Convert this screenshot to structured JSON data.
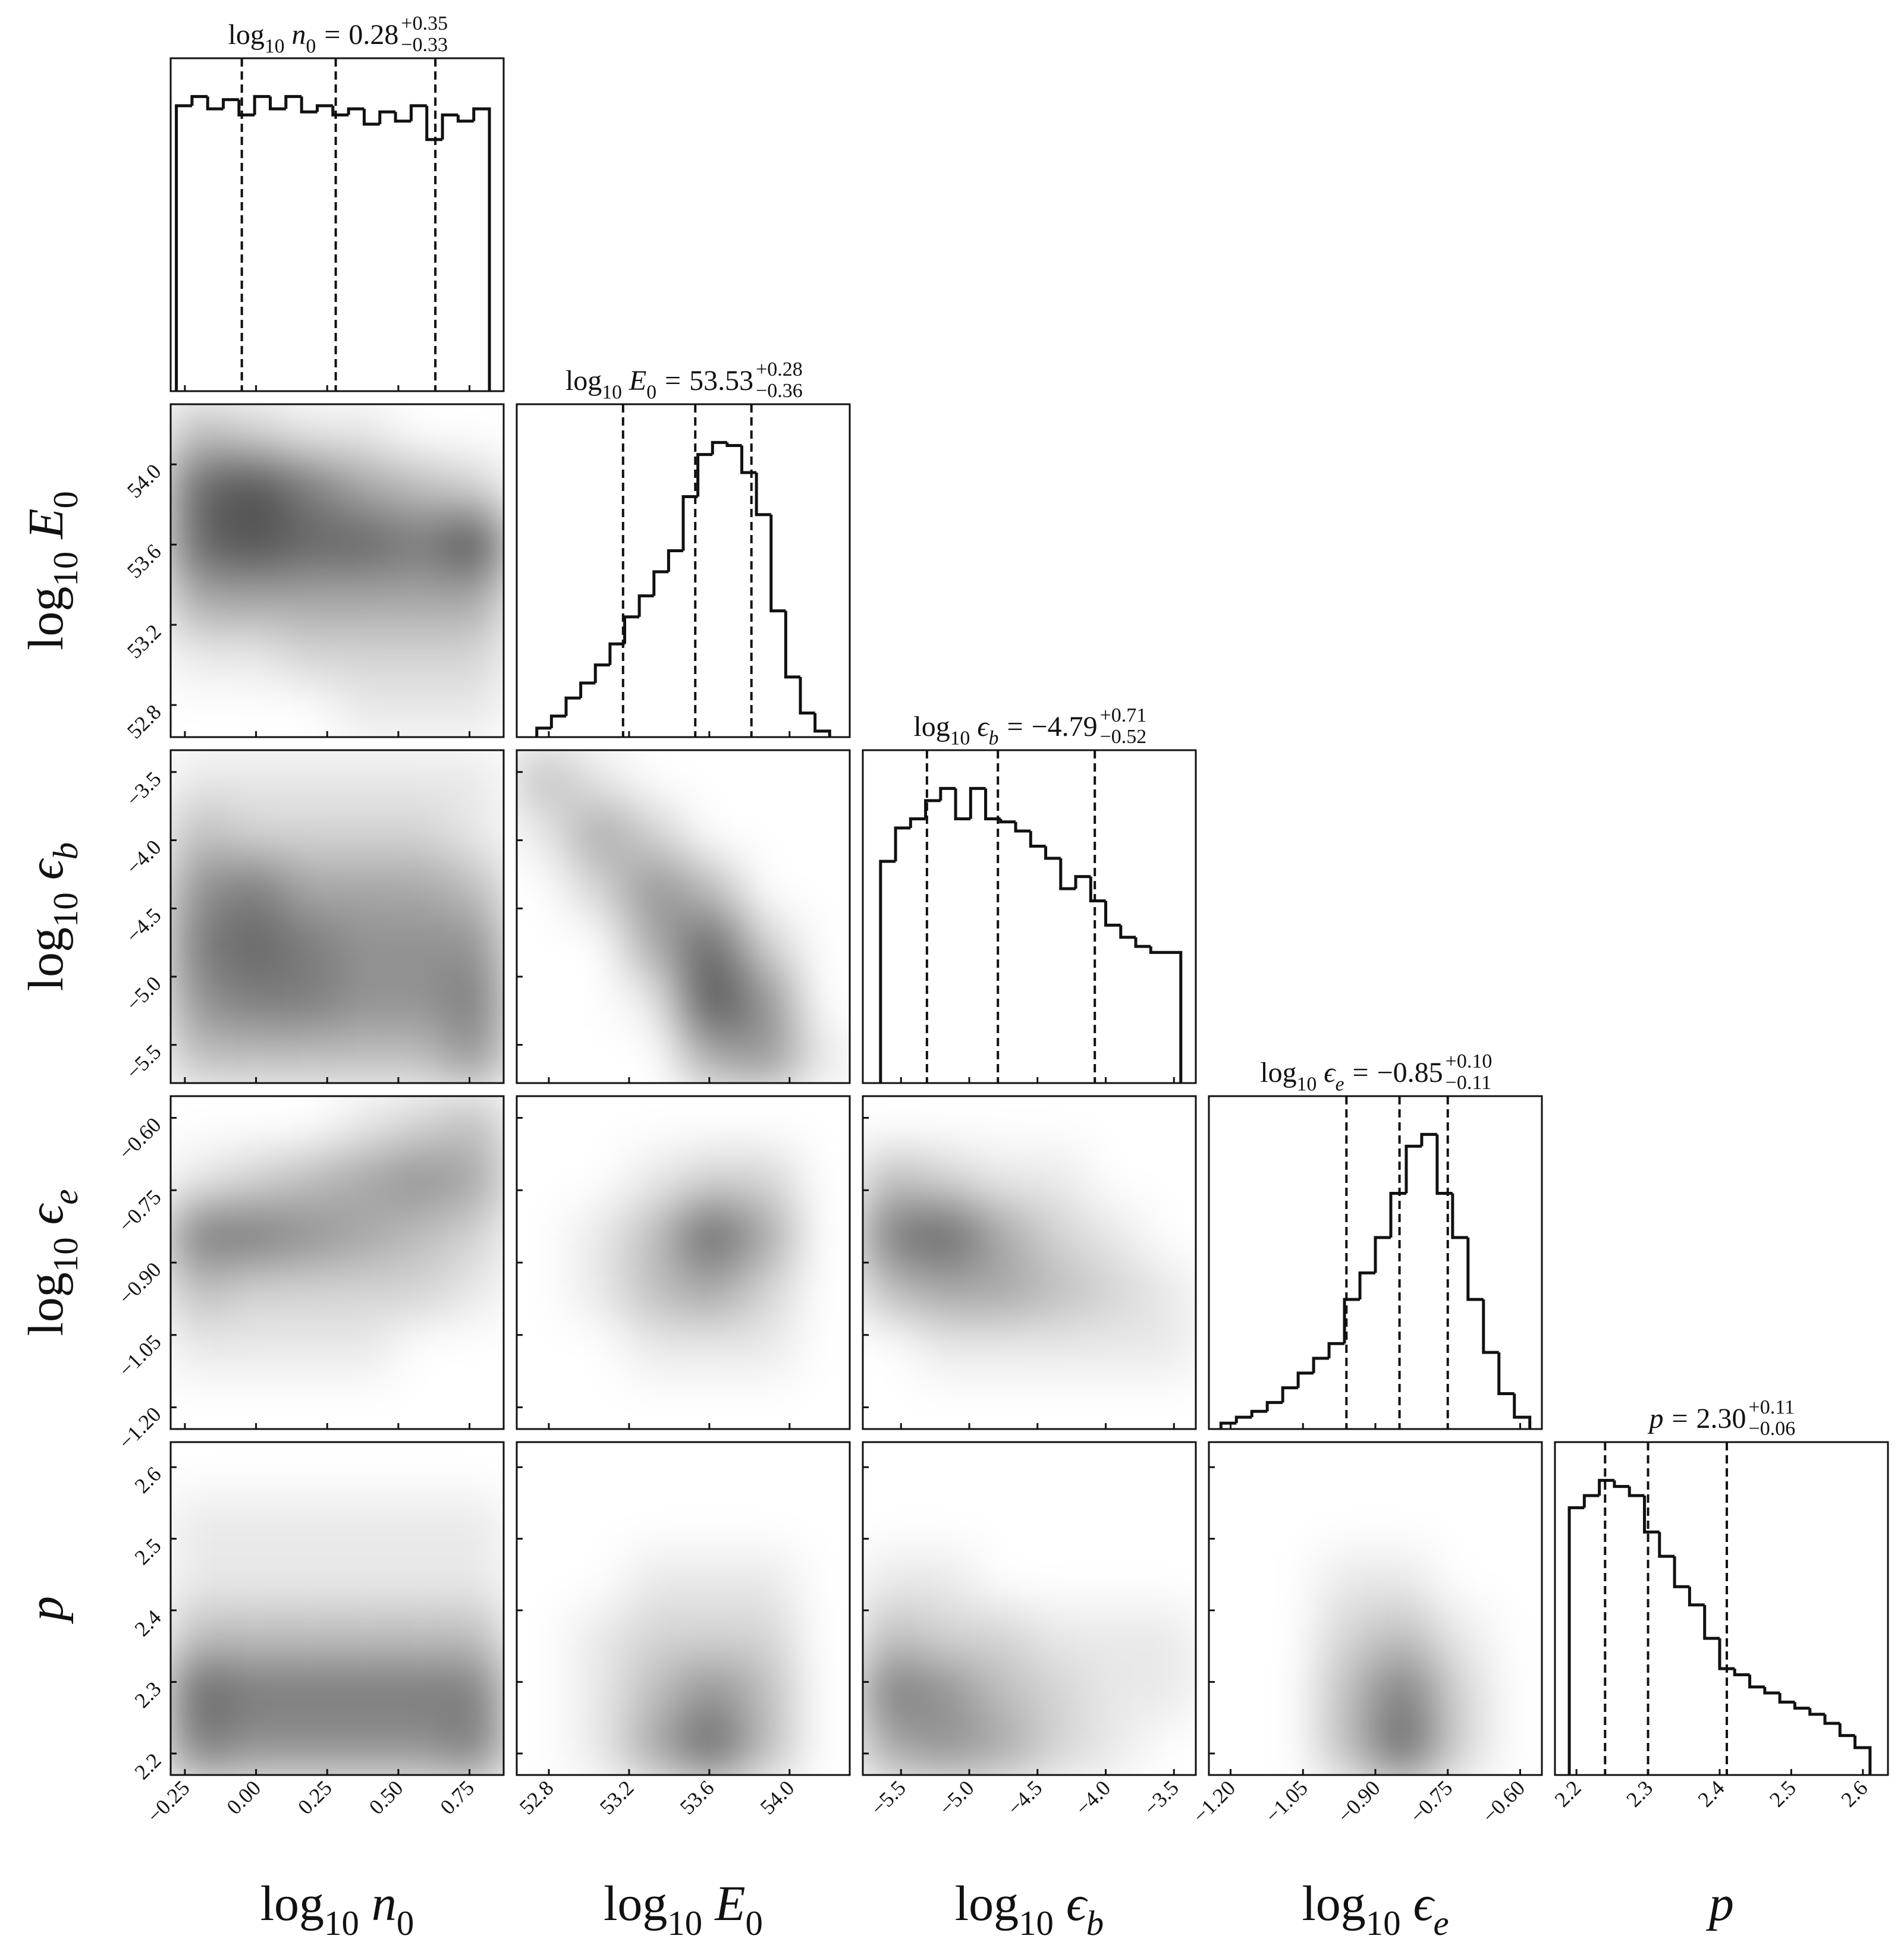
{
  "chart_data": {
    "type": "corner",
    "title_sep": "=",
    "params": [
      {
        "label": {
          "fn": "log",
          "base": "10",
          "sym": "n",
          "sub": "0"
        },
        "lim": [
          -0.3,
          0.87
        ],
        "ticks": [
          {
            "value": -0.25,
            "label": "−0.25"
          },
          {
            "value": 0,
            "label": "0.00"
          },
          0.25,
          {
            "value": 0.5,
            "label": "0.50"
          },
          0.75
        ],
        "median": 0.28,
        "plus": {
          "value": 0.35,
          "label": "+0.35"
        },
        "minus": {
          "value": 0.33,
          "label": "−0.33"
        },
        "quantiles": [
          -0.05,
          0.28,
          0.63
        ],
        "bins": [
          -0.28,
          -0.225,
          -0.17,
          -0.115,
          -0.06,
          -0.005,
          0.05,
          0.105,
          0.16,
          0.215,
          0.27,
          0.325,
          0.38,
          0.435,
          0.49,
          0.545,
          0.6,
          0.655,
          0.71,
          0.765,
          0.82
        ],
        "counts": [
          93,
          96,
          92,
          95,
          90,
          96,
          92,
          96,
          91,
          93,
          90,
          92,
          87,
          91,
          88,
          93,
          82,
          90,
          88,
          92
        ]
      },
      {
        "label": {
          "fn": "log",
          "base": "10",
          "sym": "E",
          "sub": "0"
        },
        "lim": [
          52.64,
          54.3
        ],
        "ticks": [
          52.8,
          53.2,
          53.6,
          {
            "value": 54,
            "label": "54.0"
          }
        ],
        "median": 53.53,
        "plus": {
          "value": 0.28,
          "label": "+0.28"
        },
        "minus": {
          "value": 0.36,
          "label": "−0.36"
        },
        "quantiles": [
          53.17,
          53.53,
          53.81
        ],
        "bins": [
          52.74,
          52.813,
          52.886,
          52.959,
          53.032,
          53.105,
          53.178,
          53.251,
          53.324,
          53.397,
          53.47,
          53.543,
          53.616,
          53.689,
          53.762,
          53.835,
          53.908,
          53.981,
          54.054,
          54.127,
          54.2
        ],
        "counts": [
          3,
          7,
          13,
          18,
          24,
          31,
          40,
          47,
          55,
          62,
          80,
          94,
          98,
          97,
          88,
          74,
          42,
          20,
          8,
          2
        ]
      },
      {
        "label": {
          "fn": "log",
          "base": "10",
          "sym": "ϵ",
          "sub": "b"
        },
        "lim": [
          -5.78,
          -3.34
        ],
        "ticks": [
          {
            "value": -5.5,
            "label": "−5.5"
          },
          {
            "value": -5,
            "label": "−5.0"
          },
          {
            "value": -4.5,
            "label": "−4.5"
          },
          {
            "value": -4,
            "label": "−4.0"
          },
          {
            "value": -3.5,
            "label": "−3.5"
          }
        ],
        "median": {
          "value": -4.79,
          "label": "−4.79"
        },
        "plus": {
          "value": 0.71,
          "label": "+0.71"
        },
        "minus": {
          "value": 0.52,
          "label": "−0.52"
        },
        "quantiles": [
          -5.31,
          -4.79,
          -4.08
        ],
        "bins": [
          -5.65,
          -5.54,
          -5.43,
          -5.32,
          -5.21,
          -5.1,
          -4.99,
          -4.88,
          -4.77,
          -4.66,
          -4.55,
          -4.44,
          -4.33,
          -4.22,
          -4.11,
          -4.0,
          -3.89,
          -3.78,
          -3.67,
          -3.56,
          -3.45
        ],
        "counts": [
          73,
          84,
          87,
          93,
          97,
          87,
          97,
          87,
          86,
          83,
          78,
          74,
          64,
          68,
          60,
          52,
          48,
          45,
          43,
          43
        ]
      },
      {
        "label": {
          "fn": "log",
          "base": "10",
          "sym": "ϵ",
          "sub": "e"
        },
        "lim": [
          -1.245,
          -0.555
        ],
        "ticks": [
          {
            "value": -1.2,
            "label": "−1.20"
          },
          {
            "value": -1.05,
            "label": "−1.05"
          },
          {
            "value": -0.9,
            "label": "−0.90"
          },
          {
            "value": -0.75,
            "label": "−0.75"
          },
          {
            "value": -0.6,
            "label": "−0.60"
          }
        ],
        "median": {
          "value": -0.85,
          "label": "−0.85"
        },
        "plus": {
          "value": 0.1,
          "label": "+0.10"
        },
        "minus": {
          "value": 0.11,
          "label": "−0.11"
        },
        "quantiles": [
          -0.96,
          -0.85,
          -0.75
        ],
        "bins": [
          -1.22,
          -1.188,
          -1.156,
          -1.124,
          -1.092,
          -1.06,
          -1.028,
          -0.996,
          -0.964,
          -0.932,
          -0.9,
          -0.868,
          -0.836,
          -0.804,
          -0.772,
          -0.74,
          -0.708,
          -0.676,
          -0.644,
          -0.612,
          -0.58
        ],
        "counts": [
          2,
          4,
          6,
          9,
          14,
          19,
          24,
          29,
          44,
          53,
          65,
          80,
          96,
          100,
          80,
          65,
          44,
          26,
          12,
          4
        ]
      },
      {
        "label": {
          "sym": "p"
        },
        "lim": [
          2.17,
          2.635
        ],
        "ticks": [
          2.2,
          2.3,
          2.4,
          2.5,
          2.6
        ],
        "median": {
          "value": 2.3,
          "label": "2.30"
        },
        "plus": {
          "value": 0.11,
          "label": "+0.11"
        },
        "minus": {
          "value": 0.06,
          "label": "−0.06"
        },
        "quantiles": [
          2.24,
          2.3,
          2.41
        ],
        "bins": [
          2.19,
          2.211,
          2.232,
          2.253,
          2.274,
          2.295,
          2.316,
          2.337,
          2.358,
          2.379,
          2.4,
          2.421,
          2.442,
          2.463,
          2.484,
          2.505,
          2.526,
          2.547,
          2.568,
          2.589,
          2.61
        ],
        "counts": [
          88,
          92,
          97,
          95,
          92,
          80,
          72,
          62,
          56,
          45,
          35,
          33,
          29,
          27,
          24,
          22,
          20,
          17,
          13,
          9
        ]
      }
    ],
    "density": [
      [
        [
          [
            3,
            2,
            1,
            1,
            0,
            0
          ],
          [
            7,
            8,
            6,
            4,
            3,
            2
          ],
          [
            7,
            8,
            7,
            7,
            6,
            8
          ],
          [
            4,
            4,
            4,
            4,
            4,
            4
          ],
          [
            1,
            1,
            2,
            2,
            2,
            2
          ],
          [
            0,
            0,
            0,
            1,
            1,
            1
          ]
        ]
      ],
      [
        [
          [
            1,
            1,
            1,
            1,
            1,
            1
          ],
          [
            3,
            2,
            2,
            2,
            2,
            1
          ],
          [
            5,
            6,
            4,
            4,
            4,
            3
          ],
          [
            6,
            7,
            6,
            5,
            5,
            5
          ],
          [
            5,
            6,
            6,
            5,
            5,
            6
          ],
          [
            3,
            3,
            3,
            3,
            3,
            5
          ]
        ],
        [
          [
            3,
            1,
            0,
            0,
            0,
            0
          ],
          [
            1,
            4,
            2,
            0,
            0,
            0
          ],
          [
            0,
            2,
            5,
            3,
            0,
            0
          ],
          [
            0,
            0,
            4,
            7,
            2,
            0
          ],
          [
            0,
            0,
            1,
            8,
            5,
            0
          ],
          [
            0,
            0,
            0,
            4,
            5,
            1
          ]
        ]
      ],
      [
        [
          [
            0,
            0,
            0,
            1,
            2,
            3
          ],
          [
            1,
            2,
            3,
            4,
            5,
            4
          ],
          [
            6,
            6,
            5,
            4,
            3,
            2
          ],
          [
            3,
            2,
            2,
            2,
            2,
            1
          ],
          [
            1,
            1,
            1,
            1,
            0,
            0
          ],
          [
            0,
            0,
            0,
            0,
            0,
            0
          ]
        ],
        [
          [
            0,
            0,
            0,
            0,
            0,
            0
          ],
          [
            0,
            0,
            1,
            2,
            2,
            0
          ],
          [
            0,
            1,
            3,
            7,
            4,
            0
          ],
          [
            0,
            1,
            3,
            4,
            2,
            0
          ],
          [
            0,
            0,
            1,
            1,
            1,
            0
          ],
          [
            0,
            0,
            0,
            0,
            0,
            0
          ]
        ],
        [
          [
            0,
            0,
            0,
            0,
            0,
            0
          ],
          [
            3,
            2,
            1,
            1,
            0,
            0
          ],
          [
            6,
            7,
            4,
            2,
            1,
            0
          ],
          [
            3,
            4,
            4,
            3,
            2,
            1
          ],
          [
            0,
            1,
            1,
            1,
            1,
            1
          ],
          [
            0,
            0,
            0,
            0,
            0,
            0
          ]
        ]
      ],
      [
        [
          [
            0,
            0,
            0,
            0,
            0,
            0
          ],
          [
            1,
            1,
            1,
            1,
            1,
            1
          ],
          [
            1,
            1,
            1,
            1,
            1,
            1
          ],
          [
            3,
            3,
            3,
            3,
            3,
            3
          ],
          [
            7,
            6,
            6,
            6,
            6,
            6
          ],
          [
            6,
            5,
            5,
            5,
            5,
            6
          ]
        ],
        [
          [
            0,
            0,
            0,
            0,
            0,
            0
          ],
          [
            0,
            0,
            0,
            0,
            0,
            0
          ],
          [
            0,
            0,
            1,
            1,
            1,
            0
          ],
          [
            0,
            1,
            2,
            2,
            2,
            0
          ],
          [
            0,
            1,
            3,
            5,
            3,
            0
          ],
          [
            0,
            1,
            4,
            7,
            3,
            0
          ]
        ],
        [
          [
            0,
            0,
            0,
            0,
            0,
            0
          ],
          [
            0,
            0,
            0,
            0,
            0,
            0
          ],
          [
            1,
            1,
            0,
            0,
            0,
            0
          ],
          [
            3,
            2,
            2,
            1,
            1,
            1
          ],
          [
            6,
            5,
            3,
            2,
            1,
            1
          ],
          [
            4,
            5,
            4,
            2,
            1,
            0
          ]
        ],
        [
          [
            0,
            0,
            0,
            0,
            0,
            0
          ],
          [
            0,
            0,
            0,
            0,
            0,
            0
          ],
          [
            0,
            0,
            1,
            1,
            0,
            0
          ],
          [
            0,
            0,
            2,
            3,
            1,
            0
          ],
          [
            0,
            0,
            3,
            6,
            2,
            0
          ],
          [
            0,
            0,
            3,
            7,
            2,
            0
          ]
        ]
      ]
    ]
  }
}
